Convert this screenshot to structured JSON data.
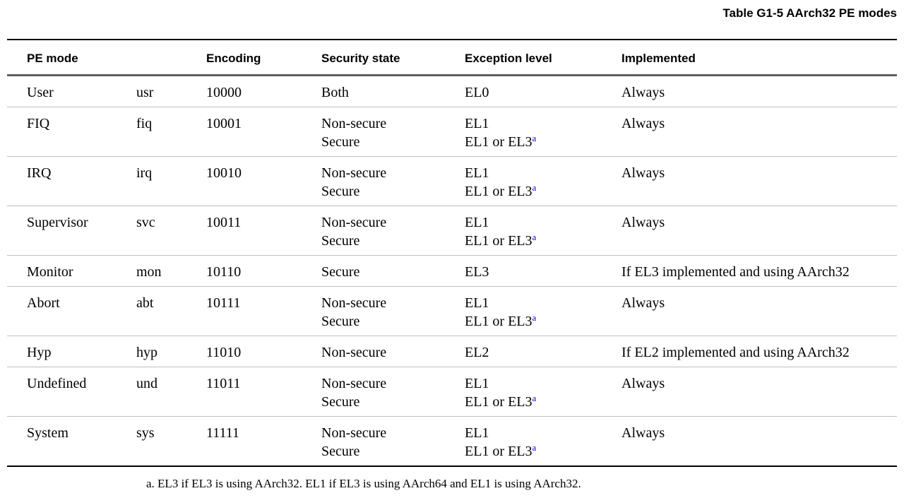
{
  "caption": "Table G1-5 AArch32 PE modes",
  "colors": {
    "footnote_ref_blue": "#0000ee",
    "rule_black": "#000000",
    "rule_header_gray": "#5f5f5f",
    "rule_row_gray": "#bfbfbf"
  },
  "table": {
    "headers": {
      "pe_mode": "PE mode",
      "encoding": "Encoding",
      "security_state": "Security state",
      "exception_level": "Exception level",
      "implemented": "Implemented"
    },
    "rows": [
      {
        "mode": "User",
        "abbr": "usr",
        "encoding": "10000",
        "security1": "Both",
        "el1": "EL0",
        "implemented": "Always"
      },
      {
        "mode": "FIQ",
        "abbr": "fiq",
        "encoding": "10001",
        "security1": "Non-secure",
        "security2": "Secure",
        "el1": "EL1",
        "el2": "EL1 or EL3",
        "el2_sup": "a",
        "implemented": "Always"
      },
      {
        "mode": "IRQ",
        "abbr": "irq",
        "encoding": "10010",
        "security1": "Non-secure",
        "security2": "Secure",
        "el1": "EL1",
        "el2": "EL1 or EL3",
        "el2_sup": "a",
        "implemented": "Always"
      },
      {
        "mode": "Supervisor",
        "abbr": "svc",
        "encoding": "10011",
        "security1": "Non-secure",
        "security2": "Secure",
        "el1": "EL1",
        "el2": "EL1 or EL3",
        "el2_sup": "a",
        "implemented": "Always"
      },
      {
        "mode": "Monitor",
        "abbr": "mon",
        "encoding": "10110",
        "security1": "Secure",
        "el1": "EL3",
        "implemented": "If EL3 implemented and using AArch32"
      },
      {
        "mode": "Abort",
        "abbr": "abt",
        "encoding": "10111",
        "security1": "Non-secure",
        "security2": "Secure",
        "el1": "EL1",
        "el2": "EL1 or EL3",
        "el2_sup": "a",
        "implemented": "Always"
      },
      {
        "mode": "Hyp",
        "abbr": "hyp",
        "encoding": "11010",
        "security1": "Non-secure",
        "el1": "EL2",
        "implemented": "If EL2 implemented and using AArch32"
      },
      {
        "mode": "Undefined",
        "abbr": "und",
        "encoding": "11011",
        "security1": "Non-secure",
        "security2": "Secure",
        "el1": "EL1",
        "el2": "EL1 or EL3",
        "el2_sup": "a",
        "implemented": "Always"
      },
      {
        "mode": "System",
        "abbr": "sys",
        "encoding": "11111",
        "security1": "Non-secure",
        "security2": "Secure",
        "el1": "EL1",
        "el2": "EL1 or EL3",
        "el2_sup": "a",
        "implemented": "Always"
      }
    ]
  },
  "footnote": {
    "text": "a. EL3 if EL3 is using AArch32. EL1 if EL3 is using AArch64 and EL1 is using AArch32."
  }
}
